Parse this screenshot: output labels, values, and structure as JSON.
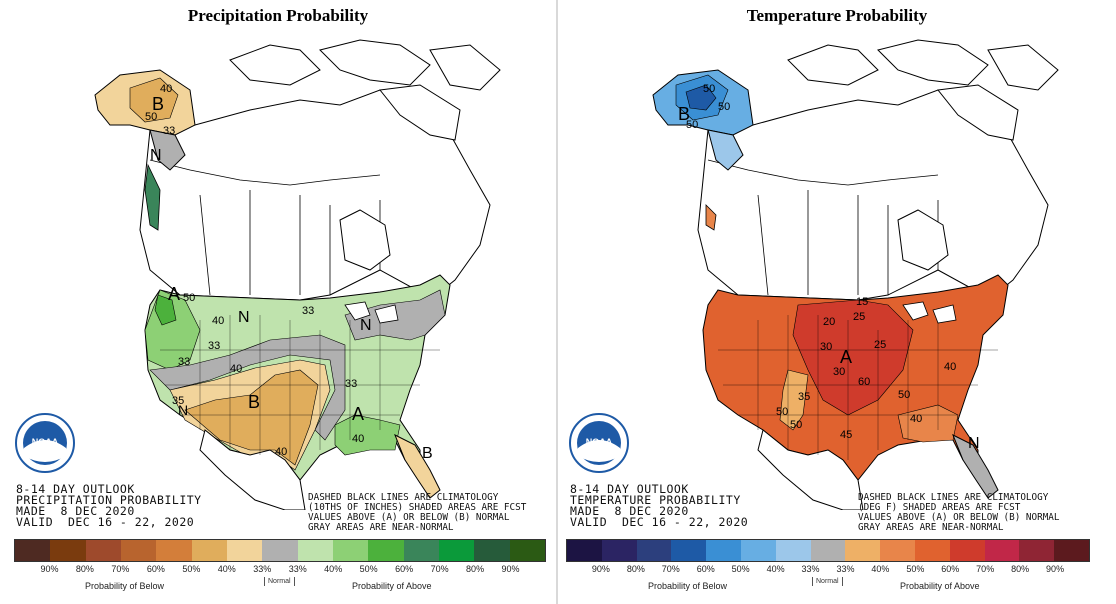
{
  "panels": {
    "precip": {
      "title": "Precipitation Probability",
      "outlook_lines": [
        "8-14 DAY OUTLOOK",
        "PRECIPITATION PROBABILITY",
        "MADE  8 DEC 2020",
        "VALID  DEC 16 - 22, 2020"
      ],
      "notes_lines": [
        "DASHED BLACK LINES ARE CLIMATOLOGY",
        "(10THS OF INCHES) SHADED AREAS ARE FCST",
        "VALUES ABOVE (A) OR BELOW (B) NORMAL",
        "GRAY AREAS ARE NEAR-NORMAL"
      ],
      "legend_colors": [
        "#4e2a22",
        "#7a3b0e",
        "#9e4a2c",
        "#b8642e",
        "#d37e3a",
        "#e0ad5c",
        "#f2d49b",
        "#b0b0b0",
        "#bfe3ad",
        "#8dd075",
        "#4cb13c",
        "#3a855a",
        "#0b9a3a",
        "#265b3a",
        "#2b5a14"
      ],
      "legend_labels": [
        "90%",
        "80%",
        "70%",
        "60%",
        "50%",
        "40%",
        "33%",
        "33%",
        "40%",
        "50%",
        "60%",
        "70%",
        "80%",
        "90%"
      ],
      "below_label": "Probability of Below",
      "normal_label": "Normal",
      "above_label": "Probability of Above",
      "map_labels": [
        "B",
        "40",
        "50",
        "33",
        "N",
        "A",
        "50",
        "40",
        "N",
        "33",
        "N",
        "33",
        "40",
        "33",
        "B",
        "35",
        "N",
        "40",
        "A",
        "B",
        "40",
        "33"
      ]
    },
    "temp": {
      "title": "Temperature Probability",
      "outlook_lines": [
        "8-14 DAY OUTLOOK",
        "TEMPERATURE PROBABILITY",
        "MADE  8 DEC 2020",
        "VALID  DEC 16 - 22, 2020"
      ],
      "notes_lines": [
        "DASHED BLACK LINES ARE CLIMATOLOGY",
        "(DEG F) SHADED AREAS ARE FCST",
        "VALUES ABOVE (A) OR BELOW (B) NORMAL",
        "GRAY AREAS ARE NEAR-NORMAL"
      ],
      "legend_colors": [
        "#1c1443",
        "#2b2463",
        "#2c3f7d",
        "#1e5aa6",
        "#3a8fd4",
        "#67aee3",
        "#9cc7ea",
        "#b0b0b0",
        "#eeb066",
        "#e8854a",
        "#e0622f",
        "#cf3b2c",
        "#c12748",
        "#8f2534",
        "#5c1a1e"
      ],
      "legend_labels": [
        "90%",
        "80%",
        "70%",
        "60%",
        "50%",
        "40%",
        "33%",
        "33%",
        "40%",
        "50%",
        "60%",
        "70%",
        "80%",
        "90%"
      ],
      "below_label": "Probability of Below",
      "normal_label": "Normal",
      "above_label": "Probability of Above",
      "map_labels": [
        "B",
        "50",
        "50",
        "50",
        "A",
        "15",
        "20",
        "25",
        "30",
        "25",
        "30",
        "35",
        "40",
        "60",
        "50",
        "40",
        "50",
        "45",
        "50",
        "N"
      ]
    }
  },
  "logo": {
    "name": "NOAA",
    "text": "NOAA"
  }
}
